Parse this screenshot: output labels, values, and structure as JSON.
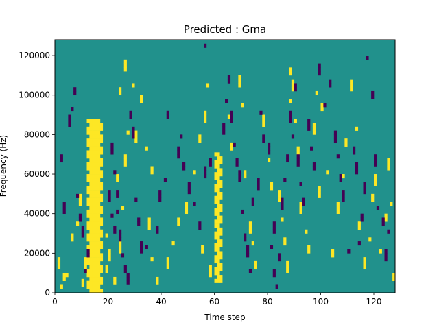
{
  "chart_data": {
    "type": "heatmap",
    "title": "Predicted : Gma",
    "xlabel": "Time step",
    "ylabel": "Frequency (Hz)",
    "xlim": [
      0,
      128
    ],
    "ylim": [
      0,
      128000
    ],
    "x_ticks": [
      0,
      20,
      40,
      60,
      80,
      100,
      120
    ],
    "y_ticks": [
      0,
      20000,
      40000,
      60000,
      80000,
      100000,
      120000
    ],
    "x_tick_labels": [
      "0",
      "20",
      "40",
      "60",
      "80",
      "100",
      "120"
    ],
    "y_tick_labels": [
      "0",
      "20000",
      "40000",
      "60000",
      "80000",
      "100000",
      "120000"
    ],
    "grid": false,
    "colormap": {
      "background": "#21918c",
      "high": "#fde725",
      "low": "#440154"
    },
    "dense_regions": [
      {
        "level": "high",
        "time_range": [
          12,
          18
        ],
        "freq_range": [
          0,
          88000
        ]
      },
      {
        "level": "high",
        "time_range": [
          60,
          63
        ],
        "freq_range": [
          5000,
          70000
        ]
      }
    ],
    "sparse_marks": {
      "high": [
        [
          2,
          2000
        ],
        [
          3,
          6000
        ],
        [
          1,
          12000
        ],
        [
          4,
          8000
        ],
        [
          10,
          3000
        ],
        [
          11,
          12000
        ],
        [
          8,
          34000
        ],
        [
          6,
          26000
        ],
        [
          9,
          44000
        ],
        [
          13,
          14000
        ],
        [
          19,
          10000
        ],
        [
          20,
          16000
        ],
        [
          19,
          28000
        ],
        [
          22,
          4000
        ],
        [
          24,
          20000
        ],
        [
          25,
          42000
        ],
        [
          23,
          56000
        ],
        [
          26,
          64000
        ],
        [
          27,
          80000
        ],
        [
          24,
          100000
        ],
        [
          26,
          112000
        ],
        [
          29,
          104000
        ],
        [
          32,
          96000
        ],
        [
          30,
          76000
        ],
        [
          34,
          72000
        ],
        [
          36,
          60000
        ],
        [
          35,
          32000
        ],
        [
          36,
          16000
        ],
        [
          38,
          4000
        ],
        [
          42,
          12000
        ],
        [
          44,
          24000
        ],
        [
          46,
          34000
        ],
        [
          49,
          40000
        ],
        [
          52,
          60000
        ],
        [
          54,
          76000
        ],
        [
          56,
          86000
        ],
        [
          57,
          104000
        ],
        [
          55,
          20000
        ],
        [
          58,
          8000
        ],
        [
          65,
          88000
        ],
        [
          66,
          72000
        ],
        [
          69,
          104000
        ],
        [
          70,
          94000
        ],
        [
          71,
          58000
        ],
        [
          73,
          30000
        ],
        [
          74,
          24000
        ],
        [
          75,
          12000
        ],
        [
          78,
          84000
        ],
        [
          80,
          66000
        ],
        [
          81,
          52000
        ],
        [
          84,
          46000
        ],
        [
          85,
          36000
        ],
        [
          86,
          24000
        ],
        [
          87,
          10000
        ],
        [
          88,
          96000
        ],
        [
          88,
          110000
        ],
        [
          89,
          102000
        ],
        [
          90,
          86000
        ],
        [
          91,
          70000
        ],
        [
          92,
          40000
        ],
        [
          94,
          30000
        ],
        [
          95,
          20000
        ],
        [
          97,
          80000
        ],
        [
          98,
          100000
        ],
        [
          100,
          92000
        ],
        [
          99,
          48000
        ],
        [
          102,
          60000
        ],
        [
          104,
          18000
        ],
        [
          106,
          40000
        ],
        [
          108,
          58000
        ],
        [
          109,
          74000
        ],
        [
          111,
          102000
        ],
        [
          113,
          82000
        ],
        [
          114,
          32000
        ],
        [
          116,
          12000
        ],
        [
          118,
          26000
        ],
        [
          119,
          46000
        ],
        [
          120,
          54000
        ],
        [
          122,
          20000
        ],
        [
          124,
          36000
        ],
        [
          125,
          62000
        ],
        [
          126,
          44000
        ],
        [
          127,
          6000
        ]
      ],
      "low": [
        [
          2,
          66000
        ],
        [
          5,
          84000
        ],
        [
          6,
          92000
        ],
        [
          7,
          100000
        ],
        [
          3,
          40000
        ],
        [
          8,
          48000
        ],
        [
          9,
          36000
        ],
        [
          10,
          28000
        ],
        [
          11,
          10000
        ],
        [
          12,
          18000
        ],
        [
          20,
          46000
        ],
        [
          21,
          38000
        ],
        [
          22,
          30000
        ],
        [
          21,
          70000
        ],
        [
          22,
          60000
        ],
        [
          23,
          48000
        ],
        [
          24,
          26000
        ],
        [
          25,
          18000
        ],
        [
          26,
          10000
        ],
        [
          27,
          4000
        ],
        [
          23,
          40000
        ],
        [
          28,
          88000
        ],
        [
          29,
          78000
        ],
        [
          30,
          46000
        ],
        [
          31,
          34000
        ],
        [
          32,
          20000
        ],
        [
          34,
          22000
        ],
        [
          38,
          30000
        ],
        [
          39,
          46000
        ],
        [
          41,
          56000
        ],
        [
          42,
          88000
        ],
        [
          46,
          68000
        ],
        [
          47,
          78000
        ],
        [
          48,
          62000
        ],
        [
          50,
          50000
        ],
        [
          52,
          44000
        ],
        [
          54,
          32000
        ],
        [
          56,
          58000
        ],
        [
          56,
          124000
        ],
        [
          58,
          64000
        ],
        [
          63,
          80000
        ],
        [
          64,
          96000
        ],
        [
          65,
          106000
        ],
        [
          66,
          86000
        ],
        [
          67,
          74000
        ],
        [
          68,
          64000
        ],
        [
          69,
          56000
        ],
        [
          70,
          40000
        ],
        [
          71,
          26000
        ],
        [
          72,
          18000
        ],
        [
          73,
          10000
        ],
        [
          74,
          44000
        ],
        [
          76,
          52000
        ],
        [
          77,
          90000
        ],
        [
          78,
          76000
        ],
        [
          80,
          70000
        ],
        [
          81,
          22000
        ],
        [
          82,
          8000
        ],
        [
          82,
          30000
        ],
        [
          83,
          2000
        ],
        [
          84,
          16000
        ],
        [
          85,
          42000
        ],
        [
          86,
          56000
        ],
        [
          87,
          66000
        ],
        [
          88,
          86000
        ],
        [
          89,
          78000
        ],
        [
          90,
          102000
        ],
        [
          91,
          64000
        ],
        [
          92,
          54000
        ],
        [
          93,
          44000
        ],
        [
          95,
          82000
        ],
        [
          96,
          72000
        ],
        [
          97,
          62000
        ],
        [
          99,
          110000
        ],
        [
          101,
          94000
        ],
        [
          103,
          104000
        ],
        [
          105,
          76000
        ],
        [
          106,
          68000
        ],
        [
          107,
          56000
        ],
        [
          108,
          46000
        ],
        [
          110,
          20000
        ],
        [
          112,
          70000
        ],
        [
          113,
          60000
        ],
        [
          114,
          24000
        ],
        [
          115,
          36000
        ],
        [
          116,
          50000
        ],
        [
          117,
          118000
        ],
        [
          119,
          98000
        ],
        [
          120,
          64000
        ],
        [
          121,
          42000
        ],
        [
          123,
          34000
        ],
        [
          124,
          16000
        ],
        [
          125,
          30000
        ]
      ]
    }
  }
}
